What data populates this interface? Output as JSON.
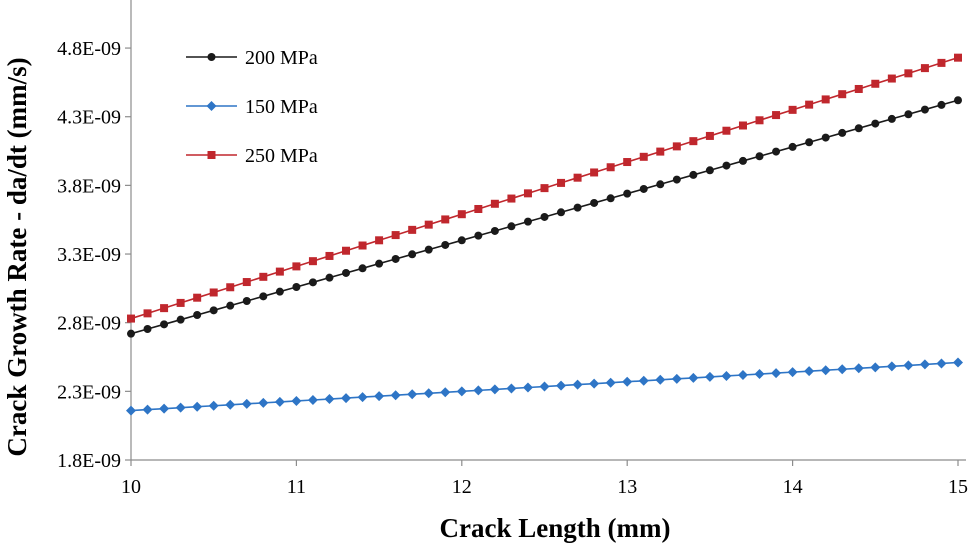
{
  "chart_data": {
    "type": "line",
    "title": "",
    "xlabel": "Crack Length (mm)",
    "ylabel": "Crack Growth Rate - da/dt (mm/s)",
    "xlim": [
      10,
      15
    ],
    "ylim": [
      1.8e-09,
      5.15e-09
    ],
    "xticks": [
      10,
      11,
      12,
      13,
      14,
      15
    ],
    "xtick_labels": [
      "10",
      "11",
      "12",
      "13",
      "14",
      "15"
    ],
    "yticks": [
      1.8e-09,
      2.3e-09,
      2.8e-09,
      3.3e-09,
      3.8e-09,
      4.3e-09,
      4.8e-09
    ],
    "ytick_labels": [
      "1.8E-09",
      "2.3E-09",
      "2.8E-09",
      "3.3E-09",
      "3.8E-09",
      "4.3E-09",
      "4.8E-09"
    ],
    "grid": false,
    "legend_position": "top-left",
    "x_points": {
      "start": 10,
      "end": 15,
      "step": 0.1
    },
    "series": [
      {
        "name": "200 MPa",
        "color": "#1a1a1a",
        "marker": "circle",
        "y_start": 2.72e-09,
        "y_end": 4.42e-09
      },
      {
        "name": "150 MPa",
        "color": "#2e75c6",
        "marker": "diamond",
        "y_start": 2.16e-09,
        "y_end": 2.51e-09
      },
      {
        "name": "250 MPa",
        "color": "#c0272d",
        "marker": "square",
        "y_start": 2.83e-09,
        "y_end": 4.73e-09
      }
    ]
  }
}
